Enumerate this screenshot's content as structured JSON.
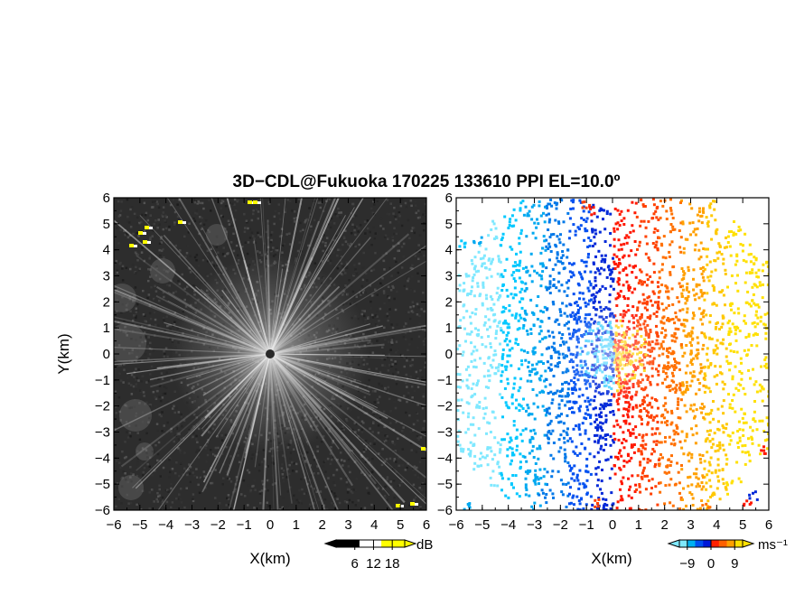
{
  "title": "3D−CDL@Fukuoka 170225 133610 PPI EL=10.0º",
  "chart_data": [
    {
      "type": "heatmap",
      "panel": "reflectivity",
      "xlabel": "X(km)",
      "ylabel": "Y(km)",
      "xlim": [
        -6,
        6
      ],
      "ylim": [
        -6,
        6
      ],
      "x_ticks": [
        "−6",
        "−5",
        "−4",
        "−3",
        "−2",
        "−1",
        "0",
        "1",
        "2",
        "3",
        "4",
        "5",
        "6"
      ],
      "y_ticks": [
        "6",
        "5",
        "4",
        "3",
        "2",
        "1",
        "0",
        "−1",
        "−2",
        "−3",
        "−4",
        "−5",
        "−6"
      ],
      "colorbar": {
        "unit": "dB",
        "ticks": [
          "6",
          "12",
          "18"
        ],
        "tick_values": [
          6,
          12,
          18
        ],
        "range": [
          0,
          22
        ],
        "colors": [
          "#000000",
          "#ffffff",
          "#ffff00"
        ]
      }
    },
    {
      "type": "heatmap",
      "panel": "doppler velocity",
      "xlabel": "X(km)",
      "xlim": [
        -6,
        6
      ],
      "ylim": [
        -6,
        6
      ],
      "x_ticks": [
        "−6",
        "−5",
        "−4",
        "−3",
        "−2",
        "−1",
        "0",
        "1",
        "2",
        "3",
        "4",
        "5",
        "6"
      ],
      "y_ticks": [
        "6",
        "5",
        "4",
        "3",
        "2",
        "1",
        "0",
        "−1",
        "−2",
        "−3",
        "−4",
        "−5",
        "−6"
      ],
      "colorbar": {
        "unit": "ms⁻¹",
        "ticks": [
          "−9",
          "0",
          "9"
        ],
        "tick_values": [
          -9,
          0,
          9
        ],
        "range": [
          -12,
          12
        ],
        "colors": [
          "#7fe8ff",
          "#00b0f0",
          "#0050f0",
          "#0018d8",
          "#ff2000",
          "#ff6000",
          "#ffa000",
          "#ffe000"
        ]
      }
    }
  ]
}
